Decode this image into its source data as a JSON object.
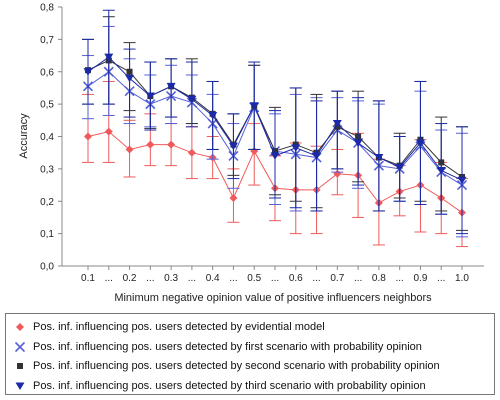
{
  "chart_data": {
    "type": "line",
    "xlabel": "Minimum negative opinion value of positive influencers neighbors",
    "ylabel": "Accuracy",
    "ylim": [
      0.0,
      0.8
    ],
    "yticks": [
      "0,0",
      "0,1",
      "0,2",
      "0,3",
      "0,4",
      "0,5",
      "0,6",
      "0,7",
      "0,8"
    ],
    "categories": [
      "0.1",
      "...",
      "0.2",
      "...",
      "0.3",
      "...",
      "0.4",
      "...",
      "0.5",
      "...",
      "0.6",
      "...",
      "0.7",
      "...",
      "0.8",
      "...",
      "0.9",
      "...",
      "1.0"
    ],
    "grid": false,
    "legend_position": "bottom",
    "series": [
      {
        "name": "Pos. inf. influencing pos. users detected by evidential model",
        "color": "#f05a5a",
        "marker": "diamond",
        "values": [
          0.4,
          0.415,
          0.36,
          0.375,
          0.375,
          0.35,
          0.335,
          0.21,
          0.355,
          0.24,
          0.235,
          0.235,
          0.285,
          0.28,
          0.195,
          0.23,
          0.25,
          0.21,
          0.165
        ],
        "err_low": [
          0.32,
          0.32,
          0.275,
          0.31,
          0.31,
          0.27,
          0.27,
          0.135,
          0.25,
          0.14,
          0.1,
          0.1,
          0.22,
          0.15,
          0.065,
          0.155,
          0.105,
          0.1,
          0.06
        ],
        "err_high": [
          0.53,
          0.57,
          0.45,
          0.47,
          0.44,
          0.43,
          0.4,
          0.3,
          0.44,
          0.34,
          0.38,
          0.37,
          0.36,
          0.41,
          0.33,
          0.31,
          0.39,
          0.32,
          0.27
        ]
      },
      {
        "name": "Pos. inf. influencing pos. users detected by first scenario with probability opinion",
        "color": "#5560d8",
        "marker": "x",
        "values": [
          0.555,
          0.6,
          0.54,
          0.5,
          0.525,
          0.505,
          0.44,
          0.34,
          0.49,
          0.355,
          0.345,
          0.335,
          0.42,
          0.38,
          0.31,
          0.3,
          0.37,
          0.29,
          0.25
        ],
        "err_low": [
          0.455,
          0.465,
          0.44,
          0.43,
          0.44,
          0.44,
          0.33,
          0.24,
          0.36,
          0.19,
          0.17,
          0.17,
          0.29,
          0.24,
          0.17,
          0.2,
          0.19,
          0.16,
          0.09
        ],
        "err_high": [
          0.65,
          0.74,
          0.64,
          0.59,
          0.62,
          0.59,
          0.53,
          0.44,
          0.62,
          0.47,
          0.53,
          0.52,
          0.52,
          0.51,
          0.5,
          0.4,
          0.54,
          0.42,
          0.41
        ]
      },
      {
        "name": "Pos. inf. influencing pos. users detected by second scenario with probability opinion",
        "color": "#333333",
        "marker": "square",
        "values": [
          0.605,
          0.635,
          0.6,
          0.525,
          0.555,
          0.52,
          0.47,
          0.375,
          0.495,
          0.355,
          0.375,
          0.35,
          0.43,
          0.4,
          0.335,
          0.31,
          0.39,
          0.32,
          0.275
        ],
        "err_low": [
          0.5,
          0.5,
          0.48,
          0.425,
          0.46,
          0.44,
          0.36,
          0.28,
          0.36,
          0.22,
          0.2,
          0.18,
          0.3,
          0.26,
          0.17,
          0.21,
          0.2,
          0.17,
          0.11
        ],
        "err_high": [
          0.7,
          0.77,
          0.69,
          0.63,
          0.64,
          0.64,
          0.57,
          0.47,
          0.62,
          0.49,
          0.55,
          0.53,
          0.54,
          0.54,
          0.51,
          0.41,
          0.57,
          0.46,
          0.43
        ]
      },
      {
        "name": "Pos. inf. influencing pos. users detected by third scenario with probability opinion",
        "color": "#1a2aa8",
        "marker": "triangle-down",
        "values": [
          0.6,
          0.645,
          0.58,
          0.525,
          0.555,
          0.515,
          0.465,
          0.37,
          0.495,
          0.34,
          0.365,
          0.34,
          0.44,
          0.38,
          0.335,
          0.305,
          0.38,
          0.295,
          0.265
        ],
        "err_low": [
          0.5,
          0.5,
          0.46,
          0.42,
          0.46,
          0.43,
          0.36,
          0.27,
          0.36,
          0.21,
          0.18,
          0.17,
          0.3,
          0.25,
          0.17,
          0.2,
          0.19,
          0.16,
          0.1
        ],
        "err_high": [
          0.7,
          0.79,
          0.67,
          0.63,
          0.64,
          0.63,
          0.57,
          0.47,
          0.63,
          0.48,
          0.55,
          0.51,
          0.54,
          0.52,
          0.51,
          0.4,
          0.57,
          0.44,
          0.43
        ]
      }
    ]
  }
}
